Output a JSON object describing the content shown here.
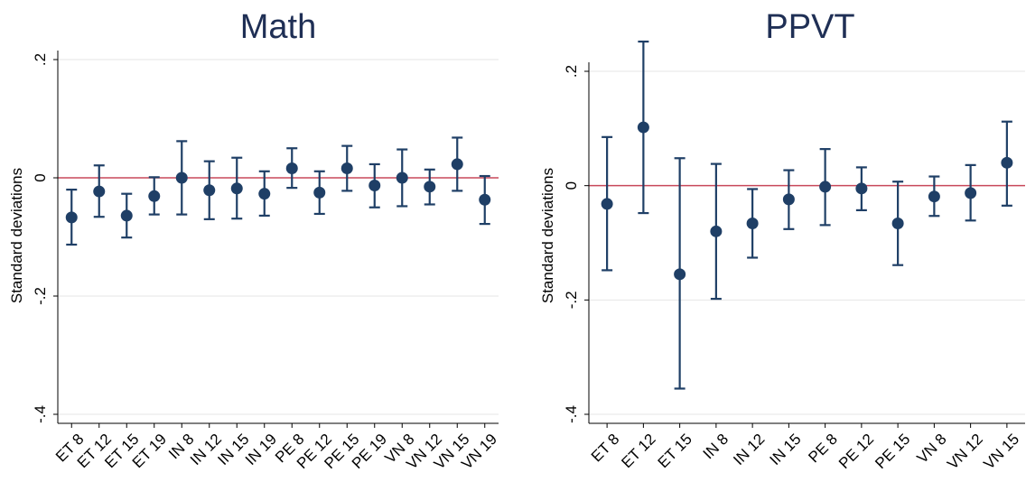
{
  "colors": {
    "marker": "#1f3f66",
    "zero_line": "#c8485a",
    "grid": "#e6e6e6",
    "axis": "#000000",
    "title": "#1f2f55"
  },
  "chart_data": [
    {
      "type": "scatter",
      "title": "Math",
      "ylabel": "Standard deviations",
      "xlabel": "",
      "ylim": [
        -0.4,
        0.2
      ],
      "yticks": [
        ".2",
        "0",
        "-.2",
        "-.4"
      ],
      "ytick_values": [
        0.2,
        0,
        -0.2,
        -0.4
      ],
      "reference_line": 0,
      "grid": true,
      "categories": [
        "ET 8",
        "ET 12",
        "ET 15",
        "ET 19",
        "IN 8",
        "IN 12",
        "IN 15",
        "IN 19",
        "PE 8",
        "PE 12",
        "PE 15",
        "PE 19",
        "VN 8",
        "VN 12",
        "VN 15",
        "VN 19"
      ],
      "series": [
        {
          "values": [
            -0.067,
            -0.023,
            -0.064,
            -0.031,
            0.0,
            -0.021,
            -0.018,
            -0.027,
            0.016,
            -0.025,
            0.016,
            -0.013,
            0.0,
            -0.015,
            0.023,
            -0.037
          ],
          "lower": [
            -0.113,
            -0.066,
            -0.101,
            -0.062,
            -0.062,
            -0.07,
            -0.069,
            -0.064,
            -0.017,
            -0.061,
            -0.022,
            -0.05,
            -0.048,
            -0.045,
            -0.022,
            -0.078
          ],
          "upper": [
            -0.02,
            0.021,
            -0.027,
            0.001,
            0.062,
            0.028,
            0.034,
            0.011,
            0.05,
            0.011,
            0.054,
            0.023,
            0.048,
            0.014,
            0.068,
            0.003
          ]
        }
      ]
    },
    {
      "type": "scatter",
      "title": "PPVT",
      "ylabel": "Standard deviations",
      "xlabel": "",
      "ylim": [
        -0.4,
        0.2
      ],
      "yticks": [
        ".2",
        "0",
        "-.2",
        "-.4"
      ],
      "ytick_values": [
        0.2,
        0,
        -0.2,
        -0.4
      ],
      "reference_line": 0,
      "grid": true,
      "categories": [
        "ET 8",
        "ET 12",
        "ET 15",
        "IN 8",
        "IN 12",
        "IN 15",
        "PE 8",
        "PE 12",
        "PE 15",
        "VN 8",
        "VN 12",
        "VN 15"
      ],
      "series": [
        {
          "values": [
            -0.032,
            0.102,
            -0.155,
            -0.08,
            -0.066,
            -0.024,
            -0.002,
            -0.005,
            -0.066,
            -0.019,
            -0.013,
            0.04
          ],
          "lower": [
            -0.148,
            -0.048,
            -0.355,
            -0.198,
            -0.126,
            -0.076,
            -0.069,
            -0.043,
            -0.139,
            -0.053,
            -0.061,
            -0.035
          ],
          "upper": [
            0.085,
            0.252,
            0.048,
            0.038,
            -0.006,
            0.027,
            0.064,
            0.032,
            0.007,
            0.016,
            0.036,
            0.112
          ]
        }
      ]
    }
  ]
}
